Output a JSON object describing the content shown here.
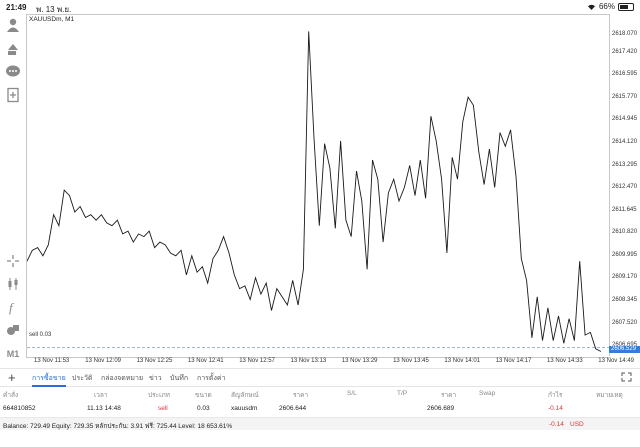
{
  "status_bar": {
    "time": "21:49",
    "date": "พ. 13 พ.ย.",
    "battery": "66%"
  },
  "chart": {
    "title": "XAUUSDm, M1",
    "sell_line_label": "sell 0.03",
    "current_price_label": "2606.529",
    "y_labels": [
      "2618.070",
      "2617.420",
      "2616.595",
      "2615.770",
      "2614.945",
      "2614.120",
      "2613.295",
      "2612.470",
      "2611.645",
      "2610.820",
      "2609.995",
      "2609.170",
      "2608.345",
      "2607.520",
      "2606.695"
    ],
    "x_labels": [
      "13 Nov 11:53",
      "13 Nov 12:09",
      "13 Nov 12:25",
      "13 Nov 12:41",
      "13 Nov 12:57",
      "13 Nov 13:13",
      "13 Nov 13:29",
      "13 Nov 13:45",
      "13 Nov 14:01",
      "13 Nov 14:17",
      "13 Nov 14:33",
      "13 Nov 14:49"
    ],
    "colors": {
      "line": "#1a1a1a",
      "sell_line": "#7aa0c8",
      "current_bg": "#3a7bd5"
    }
  },
  "chart_data": {
    "type": "line",
    "title": "XAUUSDm, M1",
    "ylim": [
      2606.3,
      2618.8
    ],
    "x_ticks": [
      "13 Nov 11:53",
      "13 Nov 12:09",
      "13 Nov 12:25",
      "13 Nov 12:41",
      "13 Nov 12:57",
      "13 Nov 13:13",
      "13 Nov 13:29",
      "13 Nov 13:45",
      "13 Nov 14:01",
      "13 Nov 14:17",
      "13 Nov 14:33",
      "13 Nov 14:49"
    ],
    "y_ticks": [
      2618.07,
      2617.42,
      2616.595,
      2615.77,
      2614.945,
      2614.12,
      2613.295,
      2612.47,
      2611.645,
      2610.82,
      2609.995,
      2609.17,
      2608.345,
      2607.52,
      2606.695
    ],
    "sell_level": 2606.644,
    "current_price": 2606.529,
    "series": [
      {
        "values": [
          2609.8,
          2610.2,
          2610.3,
          2610.0,
          2610.4,
          2611.5,
          2611.1,
          2612.4,
          2612.2,
          2611.6,
          2611.8,
          2611.4,
          2611.5,
          2611.3,
          2611.5,
          2611.2,
          2611.1,
          2611.3,
          2610.8,
          2610.9,
          2610.5,
          2610.8,
          2610.7,
          2610.9,
          2610.3,
          2610.5,
          2610.4,
          2610.1,
          2610.0,
          2610.2,
          2609.3,
          2610.0,
          2609.4,
          2609.6,
          2609.0,
          2609.9,
          2610.2,
          2610.7,
          2610.1,
          2609.3,
          2608.8,
          2608.9,
          2608.4,
          2609.2,
          2608.6,
          2609.0,
          2608.0,
          2608.8,
          2608.5,
          2608.2,
          2609.1,
          2608.2,
          2609.5,
          2618.2,
          2614.3,
          2611.1,
          2614.1,
          2613.2,
          2611.0,
          2614.2,
          2611.3,
          2610.7,
          2613.1,
          2612.0,
          2609.5,
          2613.5,
          2612.8,
          2610.5,
          2612.3,
          2612.8,
          2612.0,
          2612.5,
          2613.3,
          2612.2,
          2613.5,
          2612.1,
          2615.1,
          2614.2,
          2612.8,
          2610.1,
          2613.6,
          2612.8,
          2614.9,
          2615.8,
          2615.5,
          2613.8,
          2612.6,
          2613.9,
          2612.5,
          2614.5,
          2614.0,
          2614.6,
          2612.9,
          2609.9,
          2609.1,
          2607.0,
          2608.5,
          2606.9,
          2608.1,
          2606.9,
          2607.8,
          2606.8,
          2607.7,
          2606.9,
          2609.8,
          2607.1,
          2607.2,
          2606.6,
          2606.5
        ]
      }
    ]
  },
  "sidebar": {
    "icons": [
      "person-icon",
      "account-switch-icon",
      "chat-icon",
      "new-document-icon",
      "crosshair-icon",
      "candlestick-icon",
      "function-icon",
      "objects-icon",
      "timeframe-label"
    ],
    "timeframe": "M1"
  },
  "tabs": {
    "items": [
      "การซื้อขาย",
      "ประวัติ",
      "กล่องจดหมาย",
      "ข่าว",
      "บันทึก",
      "การตั้งค่า"
    ],
    "active_index": 0
  },
  "table": {
    "headers": [
      "คำสั่ง",
      "เวลา",
      "ประเภท",
      "ขนาด",
      "สัญลักษณ์",
      "ราคา",
      "S/L",
      "T/P",
      "ราคา",
      "Swap",
      "กำไร",
      "หมายเหตุ"
    ],
    "row": {
      "order": "664810852",
      "time": "11.13 14:48",
      "type": "sell",
      "size": "0.03",
      "symbol": "xauusdm",
      "open_price": "2606.644",
      "current_price": "2606.689",
      "profit": "-0.14"
    }
  },
  "balance": {
    "text": "Balance: 729.49 Equity: 729.35 หลักประกัน: 3.91 ฟรี: 725.44 Level: 18 653.61%",
    "total": "-0.14",
    "currency": "USD"
  }
}
